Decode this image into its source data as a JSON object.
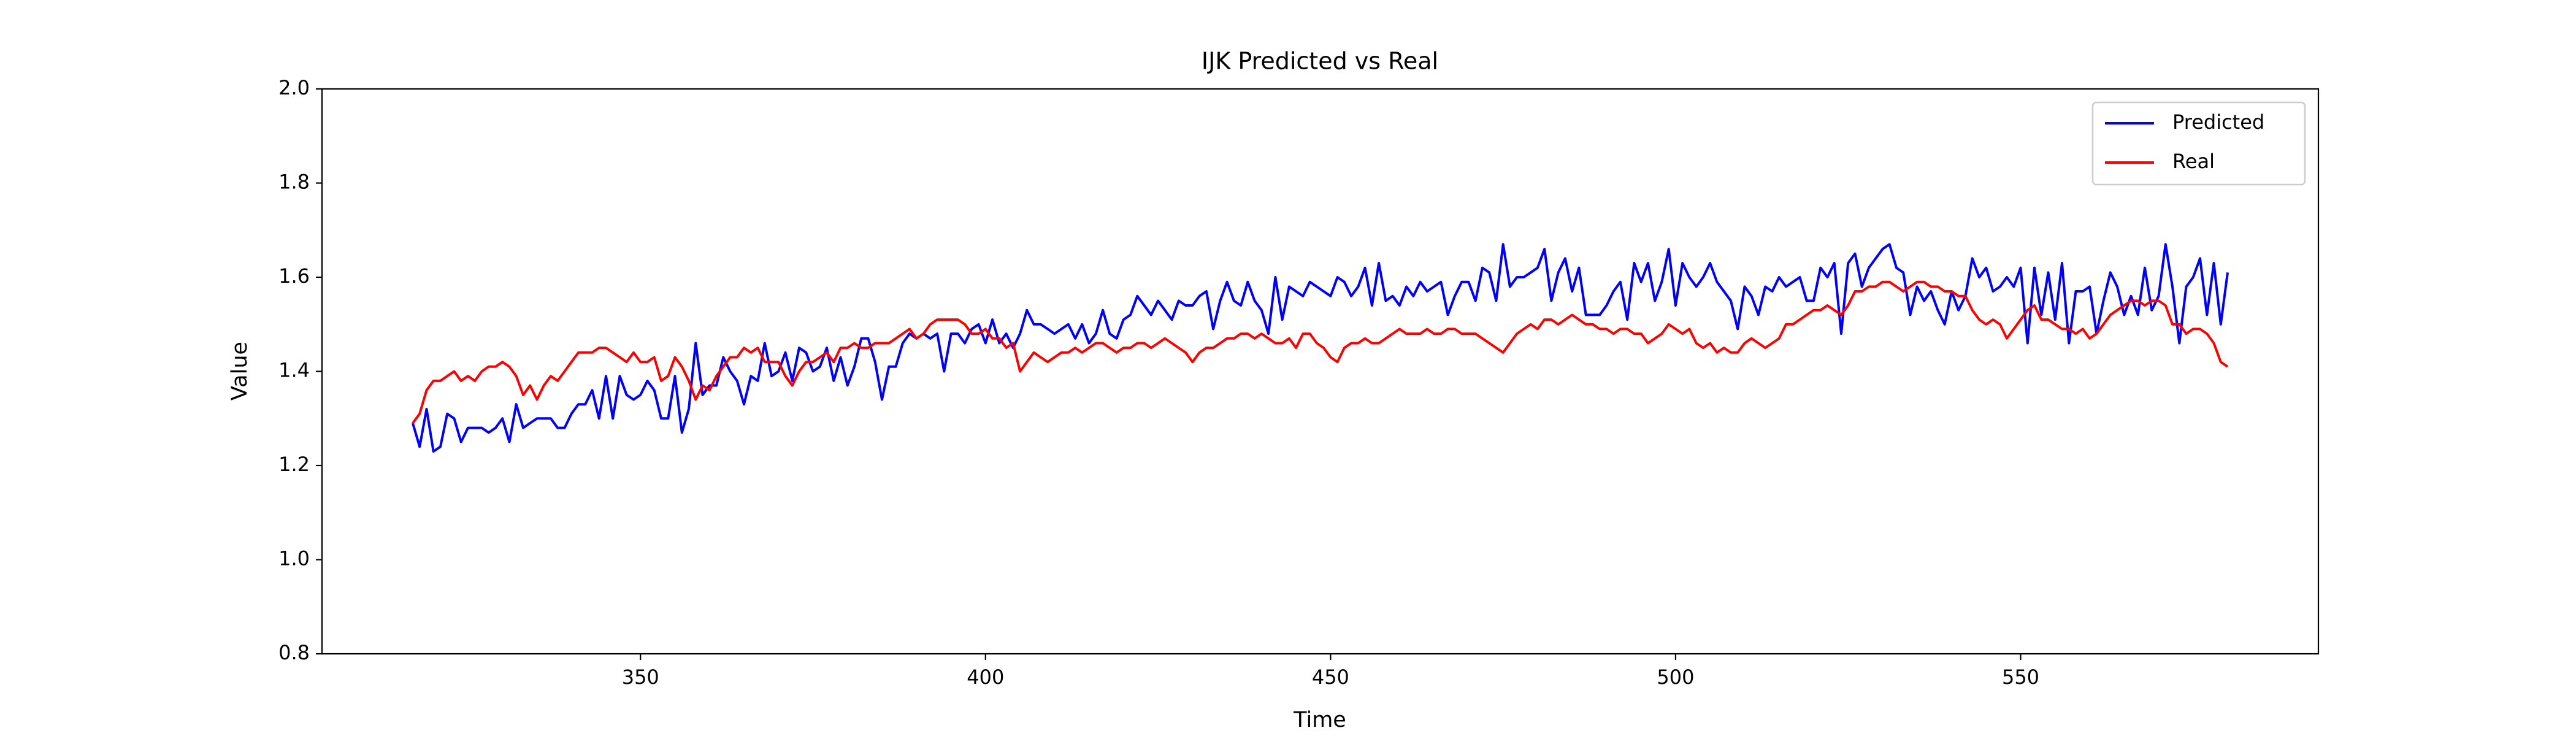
{
  "chart_data": {
    "type": "line",
    "title": "IJK Predicted vs Real",
    "xlabel": "Time",
    "ylabel": "Value",
    "x": [
      317,
      318,
      319,
      320,
      321,
      322,
      323,
      324,
      325,
      326,
      327,
      328,
      329,
      330,
      331,
      332,
      333,
      334,
      335,
      336,
      337,
      338,
      339,
      340,
      341,
      342,
      343,
      344,
      345,
      346,
      347,
      348,
      349,
      350,
      351,
      352,
      353,
      354,
      355,
      356,
      357,
      358,
      359,
      360,
      361,
      362,
      363,
      364,
      365,
      366,
      367,
      368,
      369,
      370,
      371,
      372,
      373,
      374,
      375,
      376,
      377,
      378,
      379,
      380,
      381,
      382,
      383,
      384,
      385,
      386,
      387,
      388,
      389,
      390,
      391,
      392,
      393,
      394,
      395,
      396,
      397,
      398,
      399,
      400,
      401,
      402,
      403,
      404,
      405,
      406,
      407,
      408,
      409,
      410,
      411,
      412,
      413,
      414,
      415,
      416,
      417,
      418,
      419,
      420,
      421,
      422,
      423,
      424,
      425,
      426,
      427,
      428,
      429,
      430,
      431,
      432,
      433,
      434,
      435,
      436,
      437,
      438,
      439,
      440,
      441,
      442,
      443,
      444,
      445,
      446,
      447,
      448,
      449,
      450,
      451,
      452,
      453,
      454,
      455,
      456,
      457,
      458,
      459,
      460,
      461,
      462,
      463,
      464,
      465,
      466,
      467,
      468,
      469,
      470,
      471,
      472,
      473,
      474,
      475,
      476,
      477,
      478,
      479,
      480,
      481,
      482,
      483,
      484,
      485,
      486,
      487,
      488,
      489,
      490,
      491,
      492,
      493,
      494,
      495,
      496,
      497,
      498,
      499,
      500,
      501,
      502,
      503,
      504,
      505,
      506,
      507,
      508,
      509,
      510,
      511,
      512,
      513,
      514,
      515,
      516,
      517,
      518,
      519,
      520,
      521,
      522,
      523,
      524,
      525,
      526,
      527,
      528,
      529,
      530,
      531,
      532,
      533,
      534,
      535,
      536,
      537,
      538,
      539,
      540,
      541,
      542,
      543,
      544,
      545,
      546,
      547,
      548,
      549,
      550,
      551,
      552,
      553,
      554,
      555,
      556,
      557,
      558,
      559,
      560,
      561,
      562,
      563,
      564,
      565,
      566,
      567,
      568,
      569,
      570,
      571,
      572,
      573,
      574,
      575,
      576,
      577,
      578,
      579,
      580
    ],
    "series": [
      {
        "name": "Predicted",
        "color": "#0000ff",
        "values": [
          1.29,
          1.24,
          1.32,
          1.23,
          1.24,
          1.31,
          1.3,
          1.25,
          1.28,
          1.28,
          1.28,
          1.27,
          1.28,
          1.3,
          1.25,
          1.33,
          1.28,
          1.29,
          1.3,
          1.3,
          1.3,
          1.28,
          1.28,
          1.31,
          1.33,
          1.33,
          1.36,
          1.3,
          1.39,
          1.3,
          1.39,
          1.35,
          1.34,
          1.35,
          1.38,
          1.36,
          1.3,
          1.3,
          1.39,
          1.27,
          1.32,
          1.46,
          1.35,
          1.37,
          1.37,
          1.43,
          1.4,
          1.38,
          1.33,
          1.39,
          1.38,
          1.46,
          1.39,
          1.4,
          1.44,
          1.38,
          1.45,
          1.44,
          1.4,
          1.41,
          1.45,
          1.38,
          1.43,
          1.37,
          1.41,
          1.47,
          1.47,
          1.42,
          1.34,
          1.41,
          1.41,
          1.46,
          1.48,
          1.47,
          1.48,
          1.47,
          1.48,
          1.4,
          1.48,
          1.48,
          1.46,
          1.49,
          1.5,
          1.46,
          1.51,
          1.46,
          1.48,
          1.45,
          1.48,
          1.53,
          1.5,
          1.5,
          1.49,
          1.48,
          1.49,
          1.5,
          1.47,
          1.5,
          1.46,
          1.48,
          1.53,
          1.48,
          1.47,
          1.51,
          1.52,
          1.56,
          1.54,
          1.52,
          1.55,
          1.53,
          1.51,
          1.55,
          1.54,
          1.54,
          1.56,
          1.57,
          1.49,
          1.55,
          1.59,
          1.55,
          1.54,
          1.59,
          1.55,
          1.53,
          1.48,
          1.6,
          1.51,
          1.58,
          1.57,
          1.56,
          1.59,
          1.58,
          1.57,
          1.56,
          1.6,
          1.59,
          1.56,
          1.58,
          1.62,
          1.54,
          1.63,
          1.55,
          1.56,
          1.54,
          1.58,
          1.56,
          1.59,
          1.57,
          1.58,
          1.59,
          1.52,
          1.56,
          1.59,
          1.59,
          1.55,
          1.62,
          1.61,
          1.55,
          1.67,
          1.58,
          1.6,
          1.6,
          1.61,
          1.62,
          1.66,
          1.55,
          1.61,
          1.64,
          1.57,
          1.62,
          1.52,
          1.52,
          1.52,
          1.54,
          1.57,
          1.59,
          1.51,
          1.63,
          1.59,
          1.63,
          1.55,
          1.59,
          1.66,
          1.54,
          1.63,
          1.6,
          1.58,
          1.6,
          1.63,
          1.59,
          1.57,
          1.55,
          1.49,
          1.58,
          1.56,
          1.52,
          1.58,
          1.57,
          1.6,
          1.58,
          1.59,
          1.6,
          1.55,
          1.55,
          1.62,
          1.6,
          1.63,
          1.48,
          1.63,
          1.65,
          1.58,
          1.62,
          1.64,
          1.66,
          1.67,
          1.62,
          1.61,
          1.52,
          1.58,
          1.55,
          1.57,
          1.53,
          1.5,
          1.57,
          1.53,
          1.56,
          1.64,
          1.6,
          1.62,
          1.57,
          1.58,
          1.6,
          1.58,
          1.62,
          1.46,
          1.62,
          1.52,
          1.61,
          1.51,
          1.63,
          1.46,
          1.57,
          1.57,
          1.58,
          1.48,
          1.55,
          1.61,
          1.58,
          1.52,
          1.56,
          1.52,
          1.62,
          1.53,
          1.56,
          1.67,
          1.58,
          1.46,
          1.58,
          1.6,
          1.64,
          1.52,
          1.63,
          1.5,
          1.61
        ]
      },
      {
        "name": "Real",
        "color": "#ff0000",
        "values": [
          1.29,
          1.31,
          1.36,
          1.38,
          1.38,
          1.39,
          1.4,
          1.38,
          1.39,
          1.38,
          1.4,
          1.41,
          1.41,
          1.42,
          1.41,
          1.39,
          1.35,
          1.37,
          1.34,
          1.37,
          1.39,
          1.38,
          1.4,
          1.42,
          1.44,
          1.44,
          1.44,
          1.45,
          1.45,
          1.44,
          1.43,
          1.42,
          1.44,
          1.42,
          1.42,
          1.43,
          1.38,
          1.39,
          1.43,
          1.41,
          1.38,
          1.34,
          1.37,
          1.36,
          1.39,
          1.41,
          1.43,
          1.43,
          1.45,
          1.44,
          1.45,
          1.42,
          1.42,
          1.42,
          1.39,
          1.37,
          1.4,
          1.42,
          1.42,
          1.43,
          1.44,
          1.42,
          1.45,
          1.45,
          1.46,
          1.45,
          1.45,
          1.46,
          1.46,
          1.46,
          1.47,
          1.48,
          1.49,
          1.47,
          1.48,
          1.5,
          1.51,
          1.51,
          1.51,
          1.51,
          1.5,
          1.48,
          1.48,
          1.49,
          1.47,
          1.47,
          1.45,
          1.46,
          1.4,
          1.42,
          1.44,
          1.43,
          1.42,
          1.43,
          1.44,
          1.44,
          1.45,
          1.44,
          1.45,
          1.46,
          1.46,
          1.45,
          1.44,
          1.45,
          1.45,
          1.46,
          1.46,
          1.45,
          1.46,
          1.47,
          1.46,
          1.45,
          1.44,
          1.42,
          1.44,
          1.45,
          1.45,
          1.46,
          1.47,
          1.47,
          1.48,
          1.48,
          1.47,
          1.48,
          1.47,
          1.46,
          1.46,
          1.47,
          1.45,
          1.48,
          1.48,
          1.46,
          1.45,
          1.43,
          1.42,
          1.45,
          1.46,
          1.46,
          1.47,
          1.46,
          1.46,
          1.47,
          1.48,
          1.49,
          1.48,
          1.48,
          1.48,
          1.49,
          1.48,
          1.48,
          1.49,
          1.49,
          1.48,
          1.48,
          1.48,
          1.47,
          1.46,
          1.45,
          1.44,
          1.46,
          1.48,
          1.49,
          1.5,
          1.49,
          1.51,
          1.51,
          1.5,
          1.51,
          1.52,
          1.51,
          1.5,
          1.5,
          1.49,
          1.49,
          1.48,
          1.49,
          1.49,
          1.48,
          1.48,
          1.46,
          1.47,
          1.48,
          1.5,
          1.49,
          1.48,
          1.49,
          1.46,
          1.45,
          1.46,
          1.44,
          1.45,
          1.44,
          1.44,
          1.46,
          1.47,
          1.46,
          1.45,
          1.46,
          1.47,
          1.5,
          1.5,
          1.51,
          1.52,
          1.53,
          1.53,
          1.54,
          1.53,
          1.52,
          1.54,
          1.57,
          1.57,
          1.58,
          1.58,
          1.59,
          1.59,
          1.58,
          1.57,
          1.58,
          1.59,
          1.59,
          1.58,
          1.58,
          1.57,
          1.57,
          1.56,
          1.56,
          1.53,
          1.51,
          1.5,
          1.51,
          1.5,
          1.47,
          1.49,
          1.51,
          1.53,
          1.54,
          1.51,
          1.51,
          1.5,
          1.49,
          1.49,
          1.48,
          1.49,
          1.47,
          1.48,
          1.5,
          1.52,
          1.53,
          1.54,
          1.55,
          1.55,
          1.54,
          1.55,
          1.55,
          1.54,
          1.5,
          1.5,
          1.48,
          1.49,
          1.49,
          1.48,
          1.46,
          1.42,
          1.41
        ]
      }
    ],
    "xlim": [
      303.85,
      593.15
    ],
    "xticks": [
      350,
      400,
      450,
      500,
      550
    ],
    "ylim": [
      0.8,
      2.0
    ],
    "yticks": [
      0.8,
      {
        "value": 1.0,
        "label": "1.0"
      },
      1.2,
      1.4,
      1.6,
      1.8,
      {
        "value": 2.0,
        "label": "2.0"
      }
    ],
    "grid": false,
    "legend": "upper right"
  }
}
